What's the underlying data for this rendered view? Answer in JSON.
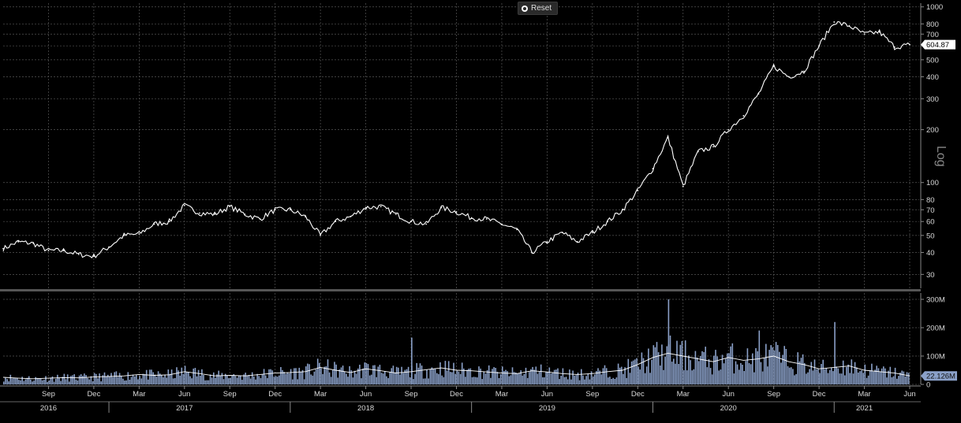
{
  "toolbar": {
    "reset_label": "Reset",
    "reset_icon": "reset-icon"
  },
  "colors": {
    "background": "#000000",
    "price_line": "#ffffff",
    "volume_fill": "#8aa0c8",
    "volume_avg": "#ffffff",
    "grid": "#555555",
    "axis_text": "#d8d8d8"
  },
  "chart_data": [
    {
      "type": "line",
      "series_name": "",
      "scale": "log",
      "scale_label": "Log",
      "ylim": [
        25,
        1050
      ],
      "yticks": [
        30,
        40,
        50,
        60,
        70,
        80,
        100,
        200,
        300,
        400,
        500,
        600,
        700,
        800,
        1000
      ],
      "last_value_label": "604.87",
      "grid": true,
      "x": [
        "2016-06",
        "2016-07",
        "2016-08",
        "2016-09",
        "2016-10",
        "2016-11",
        "2016-12",
        "2017-01",
        "2017-02",
        "2017-03",
        "2017-04",
        "2017-05",
        "2017-06",
        "2017-07",
        "2017-08",
        "2017-09",
        "2017-10",
        "2017-11",
        "2017-12",
        "2018-01",
        "2018-02",
        "2018-03",
        "2018-04",
        "2018-05",
        "2018-06",
        "2018-07",
        "2018-08",
        "2018-09",
        "2018-10",
        "2018-11",
        "2018-12",
        "2019-01",
        "2019-02",
        "2019-03",
        "2019-04",
        "2019-05",
        "2019-06",
        "2019-07",
        "2019-08",
        "2019-09",
        "2019-10",
        "2019-11",
        "2019-12",
        "2020-01",
        "2020-02",
        "2020-03",
        "2020-04",
        "2020-05",
        "2020-06",
        "2020-07",
        "2020-08",
        "2020-09",
        "2020-10",
        "2020-11",
        "2020-12",
        "2021-01",
        "2021-02",
        "2021-03",
        "2021-04",
        "2021-05",
        "2021-06"
      ],
      "values": [
        42,
        46,
        45,
        41,
        41,
        39,
        38,
        43,
        50,
        51,
        58,
        60,
        74,
        67,
        66,
        73,
        66,
        62,
        70,
        70,
        64,
        50,
        60,
        64,
        72,
        73,
        66,
        60,
        58,
        72,
        68,
        63,
        62,
        58,
        54,
        40,
        46,
        52,
        46,
        52,
        60,
        70,
        90,
        120,
        180,
        95,
        150,
        160,
        200,
        240,
        320,
        460,
        400,
        430,
        600,
        820,
        780,
        700,
        720,
        590,
        610
      ]
    },
    {
      "type": "area",
      "series_name": "",
      "ylim": [
        0,
        300
      ],
      "yticks_labels": [
        "0",
        "100M",
        "200M",
        "300M"
      ],
      "yticks": [
        0,
        100,
        200,
        300
      ],
      "unit": "M",
      "last_value_label": "22.126M",
      "x": [
        "2016-06",
        "2016-07",
        "2016-08",
        "2016-09",
        "2016-10",
        "2016-11",
        "2016-12",
        "2017-01",
        "2017-02",
        "2017-03",
        "2017-04",
        "2017-05",
        "2017-06",
        "2017-07",
        "2017-08",
        "2017-09",
        "2017-10",
        "2017-11",
        "2017-12",
        "2018-01",
        "2018-02",
        "2018-03",
        "2018-04",
        "2018-05",
        "2018-06",
        "2018-07",
        "2018-08",
        "2018-09",
        "2018-10",
        "2018-11",
        "2018-12",
        "2019-01",
        "2019-02",
        "2019-03",
        "2019-04",
        "2019-05",
        "2019-06",
        "2019-07",
        "2019-08",
        "2019-09",
        "2019-10",
        "2019-11",
        "2019-12",
        "2020-01",
        "2020-02",
        "2020-03",
        "2020-04",
        "2020-05",
        "2020-06",
        "2020-07",
        "2020-08",
        "2020-09",
        "2020-10",
        "2020-11",
        "2020-12",
        "2021-01",
        "2021-02",
        "2021-03",
        "2021-04",
        "2021-05",
        "2021-06"
      ],
      "values": [
        25,
        22,
        20,
        22,
        24,
        23,
        26,
        28,
        30,
        35,
        32,
        34,
        45,
        38,
        30,
        32,
        30,
        35,
        40,
        42,
        45,
        60,
        50,
        42,
        55,
        48,
        40,
        45,
        52,
        58,
        50,
        48,
        44,
        40,
        38,
        48,
        44,
        38,
        35,
        38,
        45,
        50,
        70,
        95,
        110,
        100,
        90,
        80,
        95,
        85,
        90,
        100,
        80,
        70,
        55,
        60,
        65,
        50,
        45,
        40,
        30
      ],
      "peaks": [
        {
          "x": "2020-02",
          "value": 300
        },
        {
          "x": "2021-01",
          "value": 220
        },
        {
          "x": "2020-08",
          "value": 190
        },
        {
          "x": "2018-09",
          "value": 165
        }
      ]
    }
  ],
  "x_axis": {
    "months": [
      "Sep",
      "Dec",
      "Mar",
      "Jun",
      "Sep",
      "Dec",
      "Mar",
      "Jun",
      "Sep",
      "Dec",
      "Mar",
      "Jun",
      "Sep",
      "Dec",
      "Mar",
      "Jun",
      "Sep",
      "Dec",
      "Mar",
      "Jun"
    ],
    "month_keys": [
      "2016-09",
      "2016-12",
      "2017-03",
      "2017-06",
      "2017-09",
      "2017-12",
      "2018-03",
      "2018-06",
      "2018-09",
      "2018-12",
      "2019-03",
      "2019-06",
      "2019-09",
      "2019-12",
      "2020-03",
      "2020-06",
      "2020-09",
      "2020-12",
      "2021-03",
      "2021-06"
    ],
    "years": [
      "2016",
      "2017",
      "2018",
      "2019",
      "2020",
      "2021"
    ],
    "year_keys": [
      "2016-09",
      "2017-06",
      "2018-06",
      "2019-06",
      "2020-06",
      "2021-03"
    ],
    "year_starts": [
      "2017-01",
      "2018-01",
      "2019-01",
      "2020-01",
      "2021-01"
    ]
  }
}
